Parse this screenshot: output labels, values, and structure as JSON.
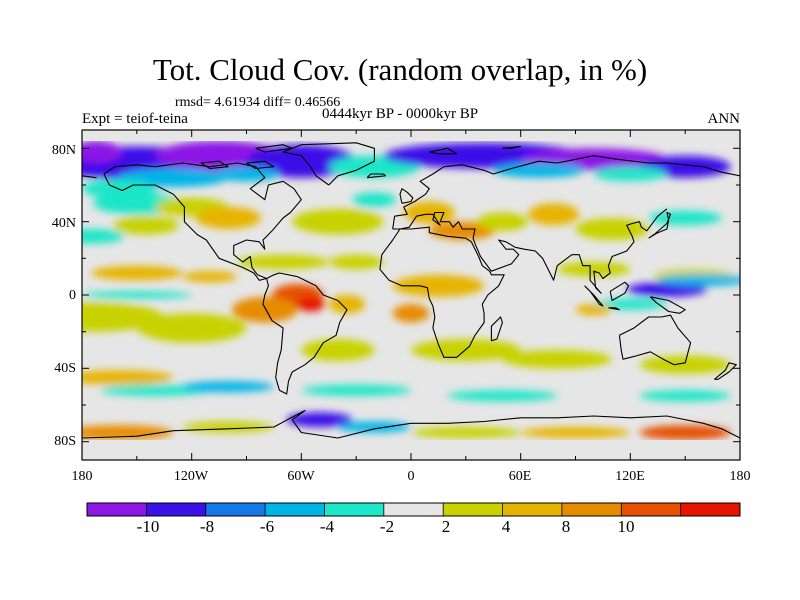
{
  "title": "Tot. Cloud Cov. (random overlap, in %)",
  "stats_line": "rmsd= 4.61934 diff= 0.46566",
  "experiment_label": "Expt = teiof-teina",
  "period_label": "0444kyr BP - 0000kyr BP",
  "season_label": "ANN",
  "map": {
    "projection": "cylindrical equidistant",
    "lat_range": [
      -90,
      90
    ],
    "lon_range": [
      -180,
      180
    ],
    "lat_ticks": [
      "80N",
      "40N",
      "0",
      "40S",
      "80S"
    ],
    "lon_ticks": [
      "180",
      "120W",
      "60W",
      "0",
      "60E",
      "120E",
      "180"
    ],
    "field": "total cloud cover difference (%)",
    "coastlines": true
  },
  "colorbar": {
    "labels": [
      "-10",
      "-8",
      "-6",
      "-4",
      "-2",
      "2",
      "4",
      "8",
      "10"
    ],
    "levels": [
      -10,
      -8,
      -6,
      -4,
      -2,
      2,
      4,
      8,
      10
    ],
    "colors": [
      "#8c18e6",
      "#3c10e8",
      "#1478e6",
      "#00b4e6",
      "#1ee6c8",
      "#e6e6e6",
      "#c8d200",
      "#e6b400",
      "#e68c00",
      "#e65000",
      "#e61400"
    ]
  }
}
